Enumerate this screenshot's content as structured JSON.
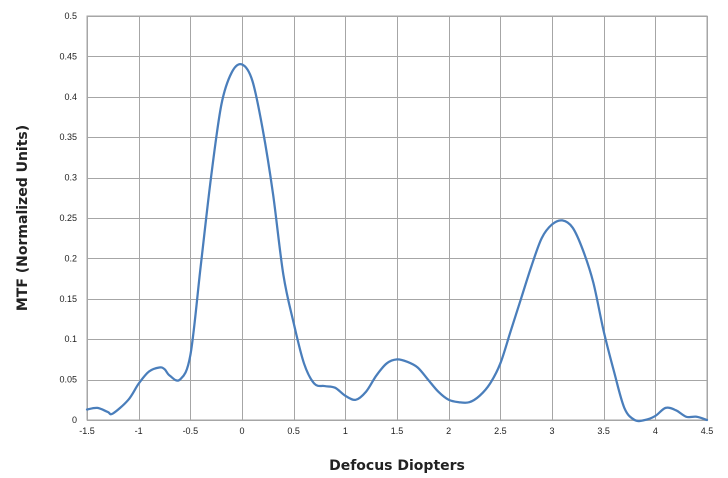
{
  "chart_data": {
    "type": "line",
    "title": "",
    "xlabel": "Defocus Diopters",
    "ylabel": "MTF (Normalized Units)",
    "xlim": [
      -1.5,
      4.5
    ],
    "ylim": [
      0,
      0.5
    ],
    "grid": true,
    "legend": "none",
    "x_ticks": [
      "-1.5",
      "-1",
      "-0.5",
      "0",
      "0.5",
      "1",
      "1.5",
      "2",
      "2.5",
      "3",
      "3.5",
      "4",
      "4.5"
    ],
    "y_ticks": [
      "0",
      "0.05",
      "0.1",
      "0.15",
      "0.2",
      "0.25",
      "0.3",
      "0.35",
      "0.4",
      "0.45",
      "0.5"
    ],
    "series": [
      {
        "color": "#4a7ebb",
        "x": [
          -1.5,
          -1.4,
          -1.3,
          -1.25,
          -1.1,
          -1.0,
          -0.9,
          -0.8,
          -0.75,
          -0.7,
          -0.6,
          -0.5,
          -0.4,
          -0.3,
          -0.2,
          -0.1,
          0.0,
          0.1,
          0.2,
          0.3,
          0.4,
          0.5,
          0.6,
          0.7,
          0.8,
          0.9,
          1.0,
          1.1,
          1.2,
          1.3,
          1.4,
          1.5,
          1.6,
          1.7,
          1.8,
          1.9,
          2.0,
          2.1,
          2.2,
          2.3,
          2.4,
          2.5,
          2.6,
          2.7,
          2.8,
          2.9,
          3.0,
          3.1,
          3.2,
          3.3,
          3.4,
          3.5,
          3.6,
          3.7,
          3.8,
          3.9,
          4.0,
          4.1,
          4.2,
          4.3,
          4.4,
          4.5
        ],
        "y": [
          0.013,
          0.015,
          0.01,
          0.008,
          0.025,
          0.045,
          0.06,
          0.065,
          0.063,
          0.055,
          0.05,
          0.08,
          0.19,
          0.3,
          0.39,
          0.43,
          0.44,
          0.42,
          0.36,
          0.28,
          0.18,
          0.12,
          0.07,
          0.045,
          0.042,
          0.04,
          0.03,
          0.025,
          0.035,
          0.055,
          0.07,
          0.075,
          0.072,
          0.065,
          0.05,
          0.035,
          0.025,
          0.022,
          0.022,
          0.03,
          0.045,
          0.07,
          0.11,
          0.15,
          0.19,
          0.225,
          0.242,
          0.247,
          0.238,
          0.21,
          0.17,
          0.11,
          0.06,
          0.015,
          0.0,
          0.0,
          0.005,
          0.015,
          0.012,
          0.004,
          0.004,
          0.0
        ]
      }
    ]
  }
}
